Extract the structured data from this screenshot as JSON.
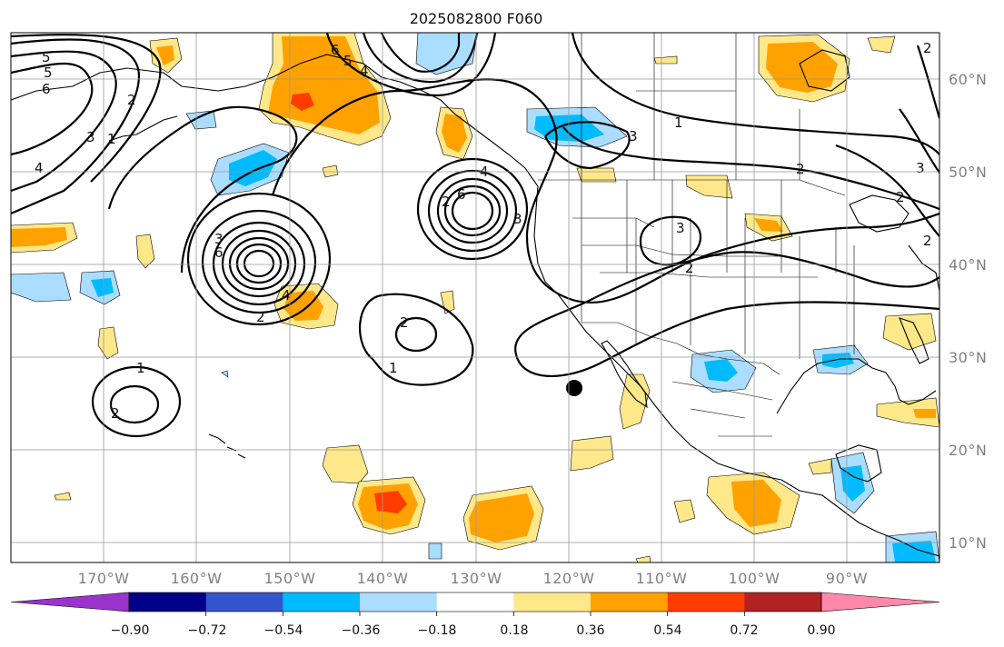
{
  "title": "2025082800 F060",
  "lon_labels": [
    "170°W",
    "160°W",
    "150°W",
    "140°W",
    "130°W",
    "120°W",
    "110°W",
    "100°W",
    "90°W"
  ],
  "lat_labels": [
    "60°N",
    "50°N",
    "40°N",
    "30°N",
    "20°N",
    "10°N"
  ],
  "colorbar": {
    "levels": [
      "−0.90",
      "−0.72",
      "−0.54",
      "−0.36",
      "−0.18",
      "0.18",
      "0.36",
      "0.54",
      "0.72",
      "0.90"
    ],
    "colors": [
      "#9933cc",
      "#000088",
      "#3355cc",
      "#00bbff",
      "#aaddff",
      "#ffffff",
      "#ffe88a",
      "#ffa200",
      "#ff3c00",
      "#b22222",
      "#ff88aa"
    ]
  },
  "contour_labels": [
    "5",
    "5",
    "6",
    "4",
    "3",
    "2",
    "1",
    "6",
    "5",
    "4",
    "1",
    "3",
    "2",
    "3",
    "6",
    "2",
    "4",
    "6",
    "2",
    "3",
    "4",
    "2",
    "3",
    "2",
    "2",
    "1",
    "1",
    "2",
    "2",
    "3",
    "2"
  ],
  "colors": {
    "grid": "#999999",
    "axis_label": "#808080",
    "fill_light_yellow": "#ffe88a",
    "fill_orange": "#ffa200",
    "fill_red": "#ff3c00",
    "fill_light_blue": "#aaddff",
    "fill_cyan": "#00bbff"
  }
}
